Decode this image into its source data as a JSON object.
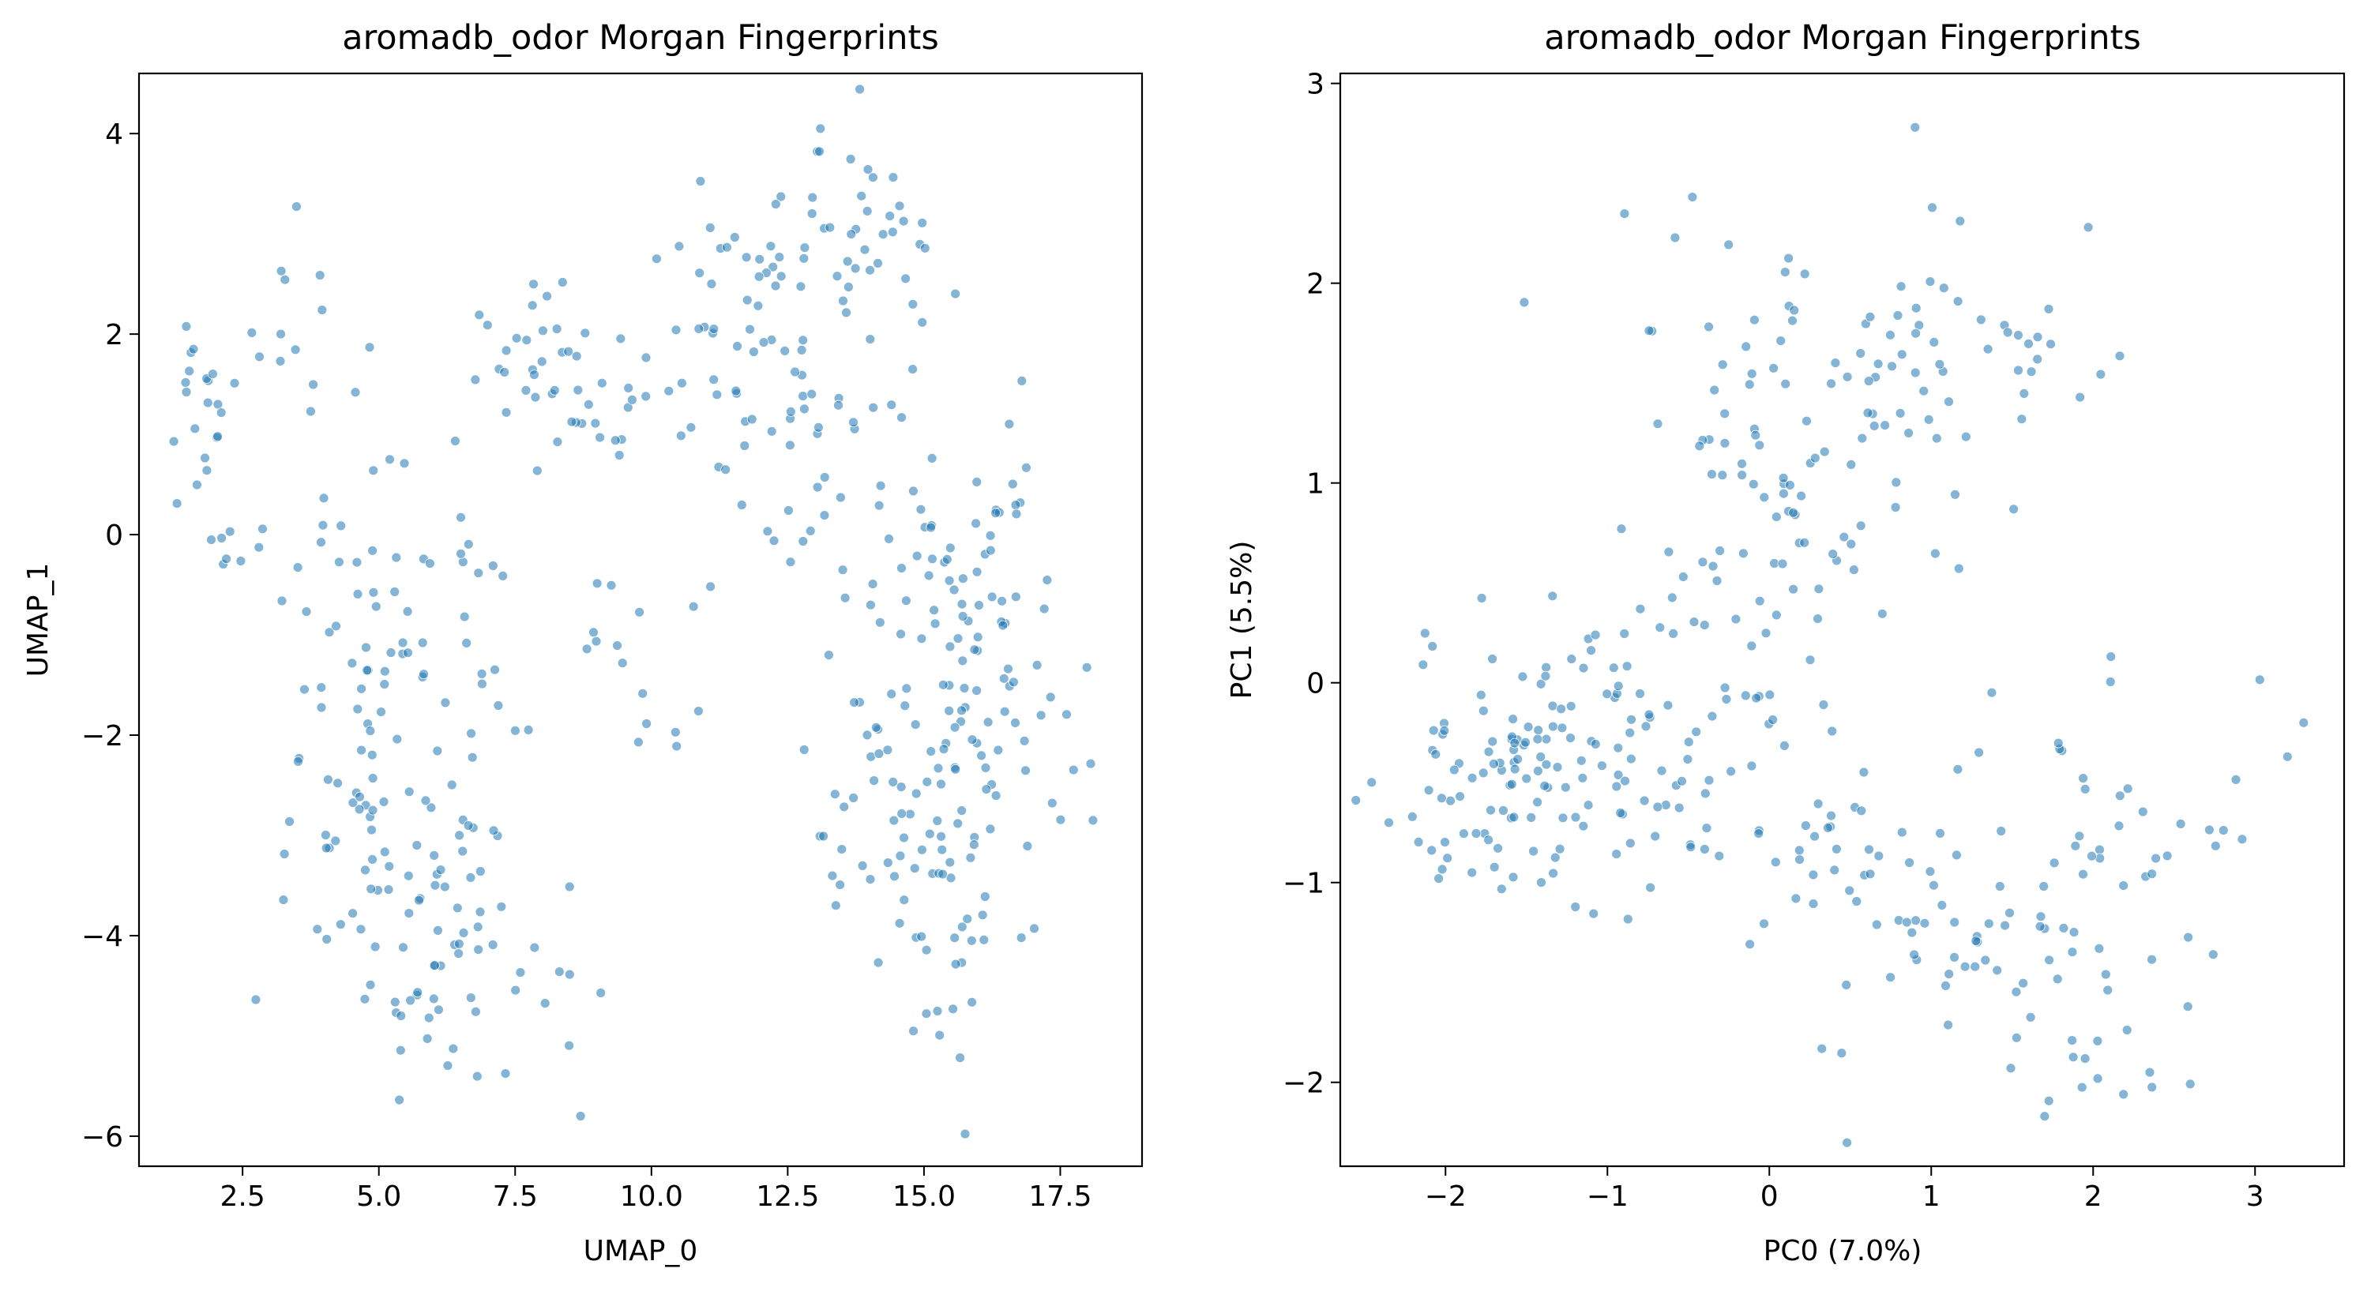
{
  "chart_data": [
    {
      "type": "scatter",
      "title": "aromadb_odor Morgan Fingerprints",
      "xlabel": "UMAP_0",
      "ylabel": "UMAP_1",
      "xlim": [
        0.6,
        19.0
      ],
      "ylim": [
        -6.3,
        4.6
      ],
      "xticks": [
        2.5,
        5.0,
        7.5,
        10.0,
        12.5,
        15.0,
        17.5
      ],
      "xtick_labels": [
        "2.5",
        "5.0",
        "7.5",
        "10.0",
        "12.5",
        "15.0",
        "17.5"
      ],
      "yticks": [
        -6,
        -4,
        -2,
        0,
        2,
        4
      ],
      "ytick_labels": [
        "−6",
        "−4",
        "−2",
        "0",
        "2",
        "4"
      ],
      "grid": false,
      "point_color": "#1f77b4",
      "point_opacity": 0.55,
      "clusters": [
        {
          "cx": 1.7,
          "cy": 1.2,
          "sx": 0.35,
          "sy": 0.5,
          "n": 20
        },
        {
          "cx": 3.2,
          "cy": 1.8,
          "sx": 0.6,
          "sy": 0.6,
          "n": 10
        },
        {
          "cx": 2.5,
          "cy": 0.0,
          "sx": 0.4,
          "sy": 0.3,
          "n": 8
        },
        {
          "cx": 7.8,
          "cy": 1.9,
          "sx": 0.7,
          "sy": 0.35,
          "n": 28
        },
        {
          "cx": 9.0,
          "cy": 1.2,
          "sx": 1.2,
          "sy": 0.3,
          "n": 12
        },
        {
          "cx": 12.5,
          "cy": 2.6,
          "sx": 1.0,
          "sy": 0.6,
          "n": 45
        },
        {
          "cx": 14.2,
          "cy": 2.8,
          "sx": 0.7,
          "sy": 0.6,
          "n": 30
        },
        {
          "cx": 11.5,
          "cy": 1.3,
          "sx": 1.2,
          "sy": 0.5,
          "n": 40
        },
        {
          "cx": 12.0,
          "cy": 0.2,
          "sx": 1.0,
          "sy": 0.5,
          "n": 12
        },
        {
          "cx": 4.5,
          "cy": -1.2,
          "sx": 0.9,
          "sy": 1.2,
          "n": 40
        },
        {
          "cx": 6.0,
          "cy": -1.5,
          "sx": 0.8,
          "sy": 1.0,
          "n": 35
        },
        {
          "cx": 4.8,
          "cy": -3.2,
          "sx": 0.9,
          "sy": 0.7,
          "n": 30
        },
        {
          "cx": 6.5,
          "cy": -3.0,
          "sx": 0.9,
          "sy": 0.8,
          "n": 30
        },
        {
          "cx": 6.0,
          "cy": -4.6,
          "sx": 0.7,
          "sy": 0.4,
          "n": 25
        },
        {
          "cx": 8.2,
          "cy": -4.6,
          "sx": 0.6,
          "sy": 0.6,
          "n": 10
        },
        {
          "cx": 9.0,
          "cy": -1.0,
          "sx": 0.6,
          "sy": 0.5,
          "n": 8
        },
        {
          "cx": 10.0,
          "cy": -1.9,
          "sx": 0.4,
          "sy": 0.2,
          "n": 6
        },
        {
          "cx": 15.3,
          "cy": -0.3,
          "sx": 0.8,
          "sy": 0.6,
          "n": 40
        },
        {
          "cx": 16.2,
          "cy": -1.5,
          "sx": 0.7,
          "sy": 0.6,
          "n": 40
        },
        {
          "cx": 14.8,
          "cy": -2.5,
          "sx": 0.8,
          "sy": 0.7,
          "n": 45
        },
        {
          "cx": 15.5,
          "cy": -3.5,
          "sx": 0.8,
          "sy": 0.6,
          "n": 25
        },
        {
          "cx": 15.5,
          "cy": -4.8,
          "sx": 0.5,
          "sy": 0.4,
          "n": 10
        },
        {
          "cx": 16.2,
          "cy": 0.6,
          "sx": 0.6,
          "sy": 0.5,
          "n": 10
        },
        {
          "cx": 13.5,
          "cy": -3.0,
          "sx": 0.5,
          "sy": 0.5,
          "n": 10
        },
        {
          "cx": 17.8,
          "cy": -2.7,
          "sx": 0.3,
          "sy": 0.3,
          "n": 4
        }
      ],
      "points": [
        {
          "x": 13.1,
          "y": 4.05
        },
        {
          "x": 3.2,
          "y": 2.0
        },
        {
          "x": 8.7,
          "y": -5.8
        },
        {
          "x": 1.6,
          "y": 1.85
        },
        {
          "x": 18.1,
          "y": -2.85
        },
        {
          "x": 5.2,
          "y": 0.75
        }
      ]
    },
    {
      "type": "scatter",
      "title": "aromadb_odor Morgan Fingerprints",
      "xlabel": "PC0 (7.0%)",
      "ylabel": "PC1 (5.5%)",
      "xlim": [
        -2.65,
        3.55
      ],
      "ylim": [
        -2.42,
        3.05
      ],
      "xticks": [
        -2,
        -1,
        0,
        1,
        2,
        3
      ],
      "xtick_labels": [
        "−2",
        "−1",
        "0",
        "1",
        "2",
        "3"
      ],
      "yticks": [
        -2,
        -1,
        0,
        1,
        2,
        3
      ],
      "ytick_labels": [
        "−2",
        "−1",
        "0",
        "1",
        "2",
        "3"
      ],
      "grid": false,
      "point_color": "#1f77b4",
      "point_opacity": 0.55,
      "clusters": [
        {
          "cx": -1.6,
          "cy": -0.5,
          "sx": 0.4,
          "sy": 0.35,
          "n": 90
        },
        {
          "cx": -0.9,
          "cy": -0.3,
          "sx": 0.35,
          "sy": 0.35,
          "n": 40
        },
        {
          "cx": -0.3,
          "cy": 0.3,
          "sx": 0.4,
          "sy": 0.45,
          "n": 30
        },
        {
          "cx": 0.3,
          "cy": 0.9,
          "sx": 0.4,
          "sy": 0.35,
          "n": 40
        },
        {
          "cx": 0.7,
          "cy": 1.6,
          "sx": 0.5,
          "sy": 0.35,
          "n": 45
        },
        {
          "cx": 1.3,
          "cy": 1.7,
          "sx": 0.4,
          "sy": 0.3,
          "n": 25
        },
        {
          "cx": -0.4,
          "cy": 1.8,
          "sx": 0.5,
          "sy": 0.3,
          "n": 15
        },
        {
          "cx": -0.6,
          "cy": -0.6,
          "sx": 0.4,
          "sy": 0.3,
          "n": 20
        },
        {
          "cx": 0.3,
          "cy": -0.8,
          "sx": 0.45,
          "sy": 0.35,
          "n": 40
        },
        {
          "cx": 1.2,
          "cy": -1.5,
          "sx": 0.45,
          "sy": 0.3,
          "n": 40
        },
        {
          "cx": 2.0,
          "cy": -1.5,
          "sx": 0.4,
          "sy": 0.4,
          "n": 30
        },
        {
          "cx": 1.9,
          "cy": -0.5,
          "sx": 0.5,
          "sy": 0.35,
          "n": 20
        },
        {
          "cx": 2.8,
          "cy": -0.6,
          "sx": 0.4,
          "sy": 0.4,
          "n": 6
        }
      ],
      "points": [
        {
          "x": 0.9,
          "y": 2.78
        },
        {
          "x": 3.3,
          "y": -0.2
        },
        {
          "x": 3.2,
          "y": -0.37
        },
        {
          "x": -2.35,
          "y": -0.7
        },
        {
          "x": 1.7,
          "y": -2.17
        },
        {
          "x": 2.35,
          "y": -1.95
        }
      ]
    }
  ]
}
